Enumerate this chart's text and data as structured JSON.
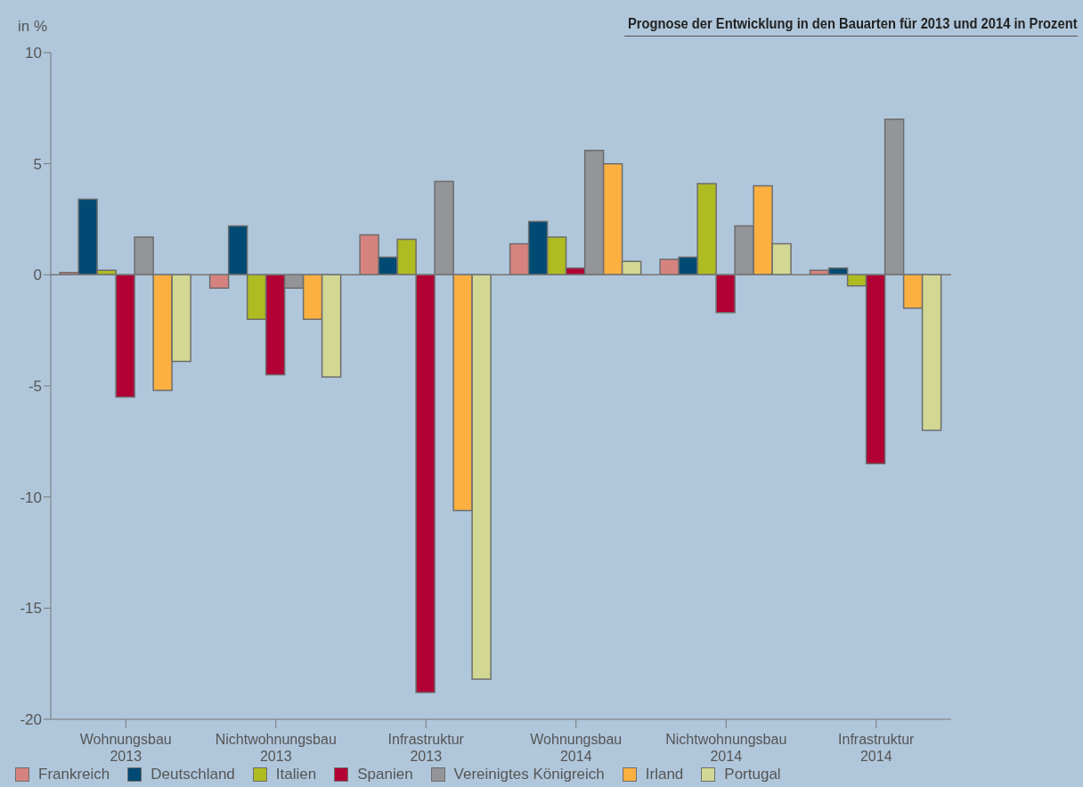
{
  "chart_data": {
    "type": "bar",
    "title": "Prognose der Entwicklung in den Bauarten für 2013 und 2014 in Prozent",
    "ylabel": "in %",
    "categories": [
      "Wohnungsbau 2013",
      "Nichtwohnungsbau 2013",
      "Infrastruktur 2013",
      "Wohnungsbau 2014",
      "Nichtwohnungsbau 2014",
      "Infrastruktur 2014"
    ],
    "series": [
      {
        "name": "Frankreich",
        "color": "#d6837f",
        "values": [
          0.1,
          -0.6,
          1.8,
          1.4,
          0.7,
          0.2
        ]
      },
      {
        "name": "Deutschland",
        "color": "#004a73",
        "values": [
          3.4,
          2.2,
          0.8,
          2.4,
          0.8,
          0.3
        ]
      },
      {
        "name": "Italien",
        "color": "#aebb21",
        "values": [
          0.2,
          -2.0,
          1.6,
          1.7,
          4.1,
          -0.5
        ]
      },
      {
        "name": "Spanien",
        "color": "#b20034",
        "values": [
          -5.5,
          -4.5,
          -18.8,
          0.3,
          -1.7,
          -8.5
        ]
      },
      {
        "name": "Vereinigtes Königreich",
        "color": "#939598",
        "values": [
          1.7,
          -0.6,
          4.2,
          5.6,
          2.2,
          7.0
        ]
      },
      {
        "name": "Irland",
        "color": "#fbb040",
        "values": [
          -5.2,
          -2.0,
          -10.6,
          5.0,
          4.0,
          -1.5
        ]
      },
      {
        "name": "Portugal",
        "color": "#d2d893",
        "values": [
          -3.9,
          -4.6,
          -18.2,
          0.6,
          1.4,
          -7.0
        ]
      }
    ],
    "ylim": [
      -20,
      10
    ],
    "yticks": [
      -20,
      -15,
      -10,
      -5,
      0,
      5,
      10
    ],
    "legend": "bottom"
  }
}
